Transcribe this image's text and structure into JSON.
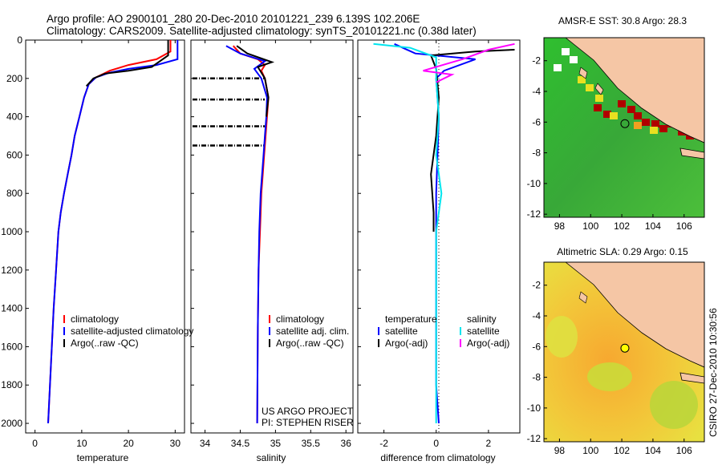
{
  "header": {
    "line1": "Argo profile: AO 2900101_280 20-Dec-2010 20101221_239 6.139S 102.206E",
    "line2": "Climatology: CARS2009. Satellite-adjusted climatology: synTS_20101221.nc (0.38d later)"
  },
  "colors": {
    "climatology": "#ff0000",
    "satellite": "#0000ff",
    "argo": "#000000",
    "satellite_salinity": "#00e5ee",
    "argo_salinity_adj": "#ff00ff",
    "land": "#f5c6a5",
    "sst_ocean": "#33b533",
    "sla_ocean": "#f0e040"
  },
  "footer": {
    "side_label": "CSIRO 27-Dec-2010 10:30:56",
    "project_line1": "US ARGO PROJECT",
    "project_line2": "PI: STEPHEN RISER"
  },
  "chart_data": [
    {
      "type": "line",
      "id": "temperature",
      "xlabel": "temperature",
      "xlim": [
        -2,
        32
      ],
      "ylim": [
        2050,
        0
      ],
      "xticks": [
        0,
        10,
        20,
        30
      ],
      "yticks": [
        0,
        200,
        400,
        600,
        800,
        1000,
        1200,
        1400,
        1600,
        1800,
        2000
      ],
      "series": [
        {
          "name": "climatology",
          "color_key": "climatology",
          "points": [
            [
              29,
              0
            ],
            [
              29,
              60
            ],
            [
              26,
              100
            ],
            [
              20,
              130
            ],
            [
              16,
              160
            ],
            [
              13,
              195
            ],
            [
              11.5,
              230
            ],
            [
              10.5,
              300
            ],
            [
              9.5,
              400
            ],
            [
              8.5,
              500
            ],
            [
              7.8,
              600
            ],
            [
              7,
              700
            ],
            [
              6.2,
              800
            ],
            [
              5.5,
              900
            ],
            [
              5,
              1000
            ],
            [
              4.5,
              1200
            ],
            [
              4,
              1400
            ],
            [
              3.6,
              1600
            ],
            [
              3.2,
              1800
            ],
            [
              2.8,
              2000
            ]
          ]
        },
        {
          "name": "satellite-adjusted climatology",
          "color_key": "satellite",
          "points": [
            [
              30.5,
              0
            ],
            [
              30.5,
              100
            ],
            [
              26,
              130
            ],
            [
              20,
              150
            ],
            [
              16,
              170
            ],
            [
              13,
              195
            ],
            [
              11.5,
              230
            ],
            [
              10.5,
              300
            ],
            [
              9.5,
              400
            ],
            [
              8.5,
              500
            ],
            [
              7.8,
              600
            ],
            [
              7,
              700
            ],
            [
              6.2,
              800
            ],
            [
              5.5,
              900
            ],
            [
              5,
              1000
            ],
            [
              4.5,
              1200
            ],
            [
              4,
              1400
            ],
            [
              3.6,
              1600
            ],
            [
              3.2,
              1800
            ],
            [
              2.8,
              2000
            ]
          ]
        },
        {
          "name": "Argo(..raw -QC)",
          "color_key": "argo",
          "points": [
            [
              28.5,
              0
            ],
            [
              28.5,
              80
            ],
            [
              25,
              140
            ],
            [
              20,
              160
            ],
            [
              15,
              175
            ],
            [
              12.5,
              200
            ],
            [
              11,
              240
            ]
          ]
        }
      ],
      "legend": [
        "climatology",
        "satellite-adjusted climatology",
        "Argo(..raw -QC)"
      ]
    },
    {
      "type": "line",
      "id": "salinity",
      "xlabel": "salinity",
      "xlim": [
        33.8,
        36.1
      ],
      "ylim": [
        2050,
        0
      ],
      "xticks": [
        34,
        34.5,
        35,
        35.5,
        36
      ],
      "yticks": [
        0,
        200,
        400,
        600,
        800,
        1000,
        1200,
        1400,
        1600,
        1800,
        2000
      ],
      "series": [
        {
          "name": "climatology",
          "color_key": "climatology",
          "points": [
            [
              34.4,
              30
            ],
            [
              34.5,
              70
            ],
            [
              34.75,
              100
            ],
            [
              34.85,
              130
            ],
            [
              34.8,
              160
            ],
            [
              34.85,
              200
            ],
            [
              34.9,
              300
            ],
            [
              34.88,
              400
            ],
            [
              34.86,
              500
            ],
            [
              34.84,
              600
            ],
            [
              34.82,
              700
            ],
            [
              34.8,
              800
            ],
            [
              34.78,
              1000
            ],
            [
              34.76,
              1200
            ],
            [
              34.75,
              1500
            ],
            [
              34.74,
              2000
            ]
          ]
        },
        {
          "name": "satellite adj. clim.",
          "color_key": "satellite",
          "points": [
            [
              34.3,
              30
            ],
            [
              34.5,
              70
            ],
            [
              34.85,
              110
            ],
            [
              34.7,
              150
            ],
            [
              34.8,
              200
            ],
            [
              34.88,
              300
            ],
            [
              34.87,
              400
            ],
            [
              34.85,
              500
            ],
            [
              34.83,
              600
            ],
            [
              34.81,
              700
            ],
            [
              34.79,
              800
            ],
            [
              34.77,
              1000
            ],
            [
              34.76,
              1200
            ],
            [
              34.75,
              1500
            ],
            [
              34.74,
              2000
            ]
          ]
        },
        {
          "name": "Argo(..raw -QC)",
          "color_key": "argo",
          "points": [
            [
              34.45,
              30
            ],
            [
              34.6,
              70
            ],
            [
              34.95,
              115
            ],
            [
              34.75,
              140
            ],
            [
              34.8,
              170
            ],
            [
              34.85,
              200
            ],
            [
              34.9,
              300
            ],
            [
              34.87,
              400
            ]
          ]
        }
      ],
      "legend": [
        "climatology",
        "satellite adj. clim.",
        "Argo(..raw -QC)"
      ]
    },
    {
      "type": "line",
      "id": "difference",
      "xlabel": "difference from climatology",
      "xlim": [
        -3,
        3.2
      ],
      "ylim": [
        2050,
        0
      ],
      "xticks": [
        -2,
        0,
        2
      ],
      "yticks": [
        0,
        200,
        400,
        600,
        800,
        1000,
        1200,
        1400,
        1600,
        1800,
        2000
      ],
      "series": [
        {
          "name": "temperature satellite",
          "color_key": "satellite",
          "points": [
            [
              -1.6,
              20
            ],
            [
              -0.8,
              70
            ],
            [
              1.5,
              100
            ],
            [
              0.3,
              160
            ],
            [
              0,
              200
            ],
            [
              0.1,
              400
            ],
            [
              0.05,
              600
            ],
            [
              0,
              800
            ],
            [
              0,
              1000
            ],
            [
              0,
              1400
            ],
            [
              0,
              1800
            ],
            [
              0.1,
              2000
            ]
          ]
        },
        {
          "name": "temperature Argo(-adj)",
          "color_key": "argo",
          "points": [
            [
              3,
              50
            ],
            [
              1.5,
              60
            ],
            [
              -0.2,
              80
            ],
            [
              0,
              150
            ],
            [
              0.1,
              300
            ],
            [
              0,
              500
            ],
            [
              -0.2,
              700
            ],
            [
              -0.1,
              900
            ],
            [
              -0.1,
              1000
            ]
          ]
        },
        {
          "name": "salinity satellite",
          "color_key": "satellite_salinity",
          "points": [
            [
              -2.4,
              20
            ],
            [
              -1,
              40
            ],
            [
              0,
              90
            ],
            [
              0,
              200
            ],
            [
              0.1,
              400
            ],
            [
              0,
              600
            ],
            [
              0.2,
              800
            ],
            [
              0,
              1000
            ],
            [
              0,
              1400
            ],
            [
              0,
              1800
            ],
            [
              0,
              2000
            ]
          ]
        },
        {
          "name": "salinity Argo(-adj)",
          "color_key": "argo_salinity_adj",
          "points": [
            [
              3,
              20
            ],
            [
              2,
              50
            ],
            [
              1,
              100
            ],
            [
              0.5,
              120
            ],
            [
              -0.5,
              160
            ],
            [
              0.6,
              180
            ],
            [
              0,
              220
            ]
          ]
        }
      ],
      "legend_headers": [
        "temperature",
        "salinity"
      ],
      "legend": [
        "satellite",
        "Argo(-adj)",
        "satellite",
        "Argo(-adj)"
      ]
    },
    {
      "type": "heatmap",
      "id": "sst_map",
      "title": "AMSR-E SST: 30.8 Argo: 28.3",
      "xticks": [
        98,
        100,
        102,
        104,
        106
      ],
      "yticks": [
        -2,
        -4,
        -6,
        -8,
        -10,
        -12
      ],
      "xlim": [
        97,
        107.3
      ],
      "ylim": [
        -12.2,
        -0.5
      ],
      "argo_position": [
        102.2,
        -6.1
      ]
    },
    {
      "type": "heatmap",
      "id": "sla_map",
      "title": "Altimetric SLA: 0.29 Argo: 0.15",
      "xticks": [
        98,
        100,
        102,
        104,
        106
      ],
      "yticks": [
        -2,
        -4,
        -6,
        -8,
        -10,
        -12
      ],
      "xlim": [
        97,
        107.3
      ],
      "ylim": [
        -12.2,
        -0.5
      ],
      "argo_position": [
        102.2,
        -6.1
      ]
    }
  ]
}
